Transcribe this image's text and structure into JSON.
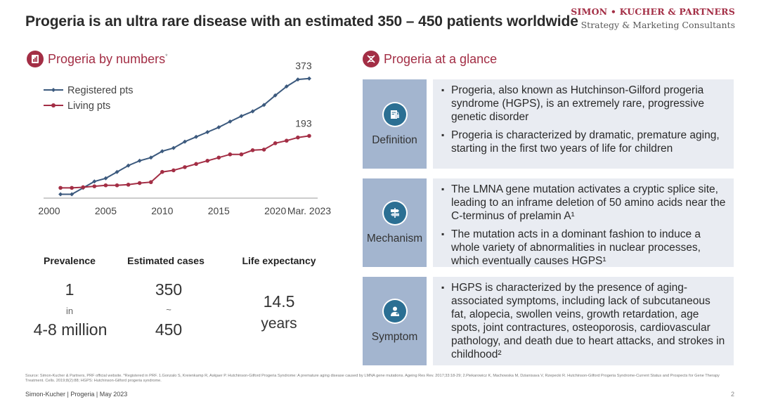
{
  "header": {
    "title": "Progeria is an ultra rare disease with an estimated 350 – 450 patients worldwide",
    "brand_name": "SIMON • KUCHER & PARTNERS",
    "brand_tagline": "Strategy & Marketing Consultants"
  },
  "left": {
    "section_title": "Progeria by numbers",
    "section_title_mark": "*"
  },
  "chart_data": {
    "type": "line",
    "title": "Progeria by numbers",
    "x_labels": [
      "2000",
      "2005",
      "2010",
      "2015",
      "2020",
      "Mar. 2023"
    ],
    "x": [
      2001,
      2002,
      2003,
      2004,
      2005,
      2006,
      2007,
      2008,
      2009,
      2010,
      2011,
      2012,
      2013,
      2014,
      2015,
      2016,
      2017,
      2018,
      2019,
      2020,
      2021,
      2022,
      2023
    ],
    "xlim": [
      2000,
      2023.5
    ],
    "ylim": [
      0,
      390
    ],
    "grid": false,
    "legend_position": "top-left",
    "series": [
      {
        "name": "Registered pts",
        "color": "#3c5a7e",
        "values": [
          10,
          10,
          30,
          50,
          60,
          80,
          100,
          115,
          125,
          145,
          155,
          175,
          190,
          205,
          220,
          238,
          255,
          270,
          290,
          320,
          348,
          370,
          373
        ]
      },
      {
        "name": "Living pts",
        "color": "#a32e45",
        "values": [
          30,
          30,
          32,
          35,
          38,
          38,
          40,
          45,
          48,
          80,
          85,
          95,
          105,
          115,
          125,
          135,
          135,
          148,
          150,
          170,
          178,
          188,
          193
        ]
      }
    ],
    "annotations": [
      {
        "series": "Registered pts",
        "label": "373"
      },
      {
        "series": "Living pts",
        "label": "193"
      }
    ]
  },
  "stats": {
    "prevalence": {
      "label": "Prevalence",
      "top": "1",
      "mid": "in",
      "bottom": "4-8 million"
    },
    "estimated": {
      "label": "Estimated cases",
      "top": "350",
      "mid": "~",
      "bottom": "450"
    },
    "life": {
      "label": "Life expectancy",
      "value": "14.5",
      "unit": "years"
    }
  },
  "right": {
    "section_title": "Progeria at a glance",
    "rows": [
      {
        "label": "Definition",
        "bullets": [
          "Progeria, also known as Hutchinson-Gilford progeria syndrome (HGPS), is an extremely rare, progressive genetic disorder",
          "Progeria is characterized by dramatic, premature aging, starting in the first two years of life for children"
        ]
      },
      {
        "label": "Mechanism",
        "bullets": [
          "The LMNA gene mutation activates a cryptic splice site, leading to an inframe deletion of 50 amino acids near the C-terminus of prelamin A¹",
          "The mutation acts in a dominant fashion to induce a whole variety of abnormalities in nuclear processes, which eventually causes HGPS¹"
        ]
      },
      {
        "label": "Symptom",
        "bullets": [
          "HGPS is characterized by the presence of aging-associated symptoms, including lack of subcutaneous fat, alopecia, swollen veins, growth retardation, age spots, joint contractures, osteoporosis, cardiovascular pathology, and death due to heart attacks, and strokes in childhood²"
        ]
      }
    ]
  },
  "source_text": "Source: Simon-Kucher & Partners, PRF official website. *Registered in PRF. 1.Gonzalo S, Kreienkamp R, Askjaer P. Hutchinson-Gilford Progeria Syndrome: A premature aging disease caused by LMNA gene mutations. Ageing Res Rev. 2017;33:18-29; 2.Piekarowicz K, Machowska M, Dzianisava V, Rzepecki R. Hutchinson-Gilford Progeria Syndrome-Current Status and Prospects for Gene Therapy Treatment. Cells. 2019;8(2):88; HGPS: Hutchinson-Gilford progeria syndrome.",
  "footer": {
    "text": "Simon-Kucher | Progeria | May 2023",
    "page": "2"
  }
}
